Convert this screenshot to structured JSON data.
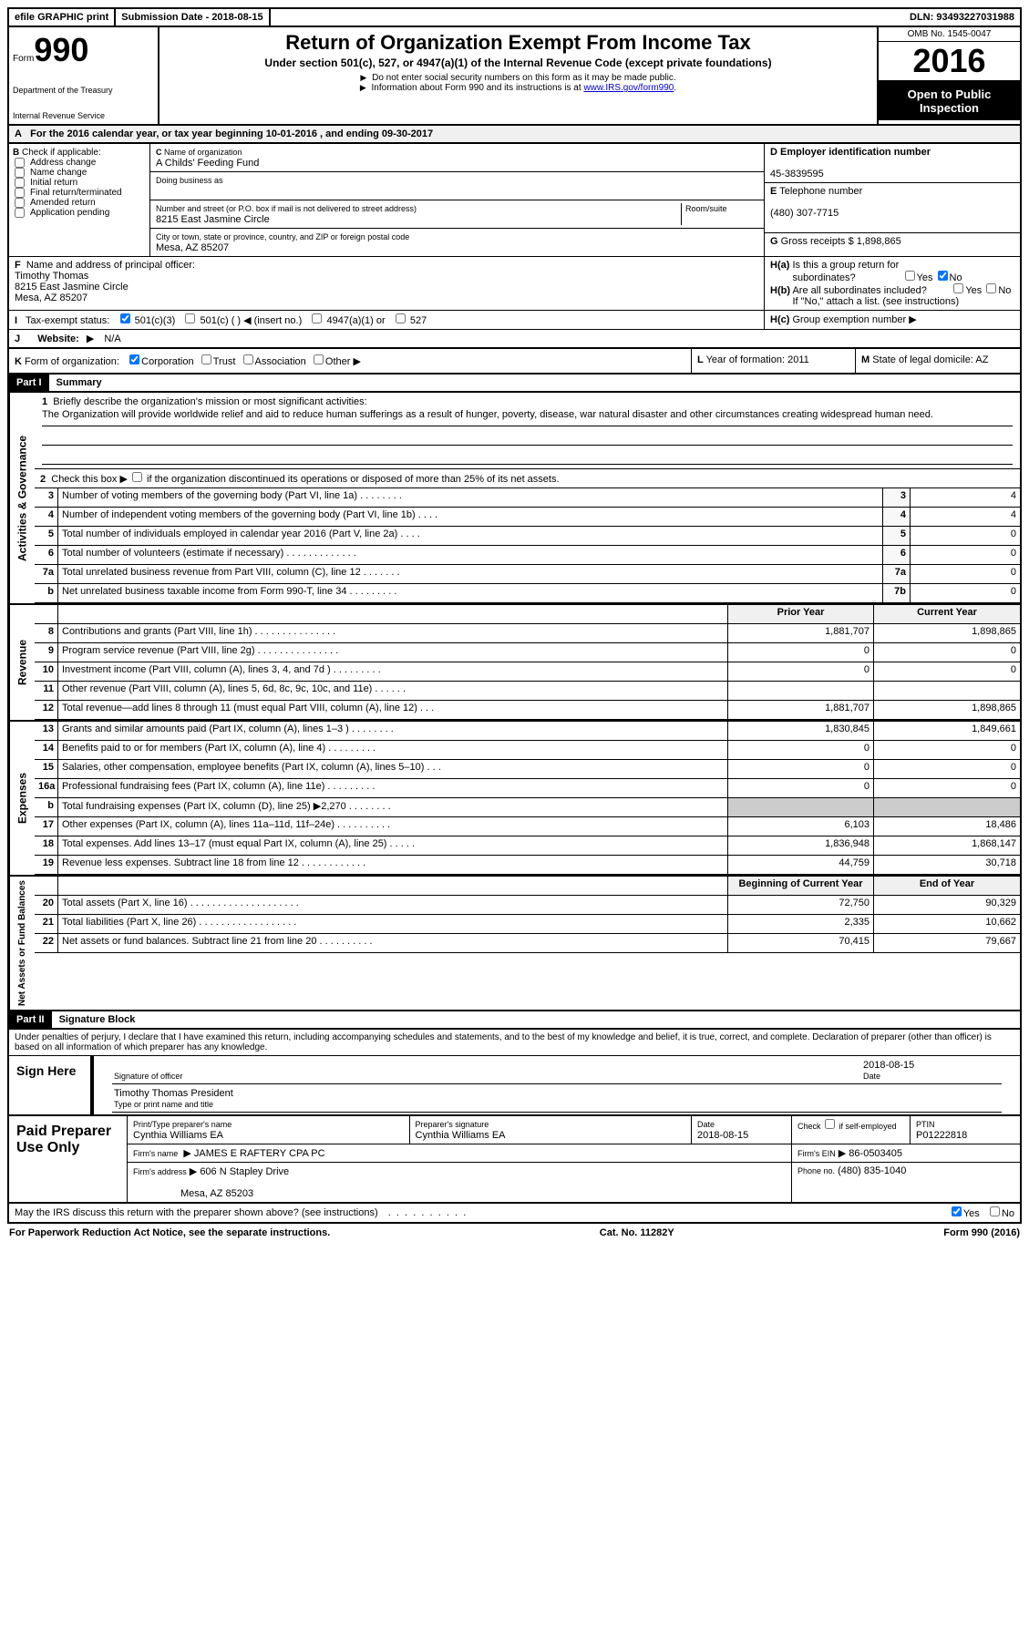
{
  "top": {
    "efile": "efile GRAPHIC print",
    "submission": "Submission Date - 2018-08-15",
    "dln": "DLN: 93493227031988"
  },
  "header": {
    "form_label": "Form",
    "form_num": "990",
    "dept1": "Department of the Treasury",
    "dept2": "Internal Revenue Service",
    "title": "Return of Organization Exempt From Income Tax",
    "subtitle": "Under section 501(c), 527, or 4947(a)(1) of the Internal Revenue Code (except private foundations)",
    "inst1": "Do not enter social security numbers on this form as it may be made public.",
    "inst2": "Information about Form 990 and its instructions is at",
    "inst_link": "www.IRS.gov/form990",
    "omb": "OMB No. 1545-0047",
    "year": "2016",
    "open1": "Open to Public",
    "open2": "Inspection"
  },
  "section_a": "For the 2016 calendar year, or tax year beginning 10-01-2016   , and ending 09-30-2017",
  "col_b": {
    "title": "Check if applicable:",
    "items": [
      "Address change",
      "Name change",
      "Initial return",
      "Final return/terminated",
      "Amended return",
      "Application pending"
    ]
  },
  "col_c": {
    "name_label": "Name of organization",
    "name": "A Childs' Feeding Fund",
    "dba_label": "Doing business as",
    "addr_label": "Number and street (or P.O. box if mail is not delivered to street address)",
    "room_label": "Room/suite",
    "addr": "8215 East Jasmine Circle",
    "city_label": "City or town, state or province, country, and ZIP or foreign postal code",
    "city": "Mesa, AZ  85207",
    "officer_label": "Name and address of principal officer:",
    "officer_name": "Timothy Thomas",
    "officer_addr": "8215 East Jasmine Circle",
    "officer_city": "Mesa, AZ  85207"
  },
  "col_d": {
    "ein_label": "Employer identification number",
    "ein": "45-3839595",
    "phone_label": "Telephone number",
    "phone": "(480) 307-7715",
    "gross_label": "Gross receipts $",
    "gross": "1,898,865"
  },
  "col_h": {
    "ha_label": "Is this a group return for",
    "ha_sub": "subordinates?",
    "hb_label": "Are all subordinates included?",
    "hb_note": "If \"No,\" attach a list. (see instructions)",
    "hc_label": "Group exemption number",
    "yes": "Yes",
    "no": "No"
  },
  "tax_status": {
    "label": "Tax-exempt status:",
    "opt1": "501(c)(3)",
    "opt2": "501(c) (  )",
    "opt2_note": "(insert no.)",
    "opt3": "4947(a)(1) or",
    "opt4": "527"
  },
  "website": {
    "label": "Website:",
    "value": "N/A"
  },
  "form_org": {
    "label": "Form of organization:",
    "opts": [
      "Corporation",
      "Trust",
      "Association",
      "Other"
    ]
  },
  "year_formed": {
    "label": "Year of formation:",
    "value": "2011"
  },
  "domicile": {
    "label": "State of legal domicile:",
    "value": "AZ"
  },
  "part1": {
    "header": "Part I",
    "title": "Summary",
    "line1_label": "Briefly describe the organization's mission or most significant activities:",
    "mission": "The Organization will provide worldwide relief and aid to reduce human sufferings as a result of hunger, poverty, disease, war natural disaster and other circumstances creating widespread human need.",
    "line2": "Check this box",
    "line2_cont": "if the organization discontinued its operations or disposed of more than 25% of its net assets.",
    "lines_gov": [
      {
        "n": "3",
        "t": "Number of voting members of the governing body (Part VI, line 1a)",
        "ln": "3",
        "v": "4"
      },
      {
        "n": "4",
        "t": "Number of independent voting members of the governing body (Part VI, line 1b)",
        "ln": "4",
        "v": "4"
      },
      {
        "n": "5",
        "t": "Total number of individuals employed in calendar year 2016 (Part V, line 2a)",
        "ln": "5",
        "v": "0"
      },
      {
        "n": "6",
        "t": "Total number of volunteers (estimate if necessary)",
        "ln": "6",
        "v": "0"
      },
      {
        "n": "7a",
        "t": "Total unrelated business revenue from Part VIII, column (C), line 12",
        "ln": "7a",
        "v": "0"
      },
      {
        "n": "b",
        "t": "Net unrelated business taxable income from Form 990-T, line 34",
        "ln": "7b",
        "v": "0"
      }
    ],
    "col_headers": {
      "prior": "Prior Year",
      "current": "Current Year"
    },
    "revenue": [
      {
        "n": "8",
        "t": "Contributions and grants (Part VIII, line 1h)",
        "p": "1,881,707",
        "c": "1,898,865"
      },
      {
        "n": "9",
        "t": "Program service revenue (Part VIII, line 2g)",
        "p": "0",
        "c": "0"
      },
      {
        "n": "10",
        "t": "Investment income (Part VIII, column (A), lines 3, 4, and 7d )",
        "p": "0",
        "c": "0"
      },
      {
        "n": "11",
        "t": "Other revenue (Part VIII, column (A), lines 5, 6d, 8c, 9c, 10c, and 11e)",
        "p": "",
        "c": ""
      },
      {
        "n": "12",
        "t": "Total revenue—add lines 8 through 11 (must equal Part VIII, column (A), line 12)",
        "p": "1,881,707",
        "c": "1,898,865"
      }
    ],
    "expenses": [
      {
        "n": "13",
        "t": "Grants and similar amounts paid (Part IX, column (A), lines 1–3 )",
        "p": "1,830,845",
        "c": "1,849,661"
      },
      {
        "n": "14",
        "t": "Benefits paid to or for members (Part IX, column (A), line 4)",
        "p": "0",
        "c": "0"
      },
      {
        "n": "15",
        "t": "Salaries, other compensation, employee benefits (Part IX, column (A), lines 5–10)",
        "p": "0",
        "c": "0"
      },
      {
        "n": "16a",
        "t": "Professional fundraising fees (Part IX, column (A), line 11e)",
        "p": "0",
        "c": "0"
      },
      {
        "n": "b",
        "t": "Total fundraising expenses (Part IX, column (D), line 25) ▶2,270",
        "p": "",
        "c": "",
        "shaded": true
      },
      {
        "n": "17",
        "t": "Other expenses (Part IX, column (A), lines 11a–11d, 11f–24e)",
        "p": "6,103",
        "c": "18,486"
      },
      {
        "n": "18",
        "t": "Total expenses. Add lines 13–17 (must equal Part IX, column (A), line 25)",
        "p": "1,836,948",
        "c": "1,868,147"
      },
      {
        "n": "19",
        "t": "Revenue less expenses. Subtract line 18 from line 12",
        "p": "44,759",
        "c": "30,718"
      }
    ],
    "net_headers": {
      "begin": "Beginning of Current Year",
      "end": "End of Year"
    },
    "net": [
      {
        "n": "20",
        "t": "Total assets (Part X, line 16)",
        "p": "72,750",
        "c": "90,329"
      },
      {
        "n": "21",
        "t": "Total liabilities (Part X, line 26)",
        "p": "2,335",
        "c": "10,662"
      },
      {
        "n": "22",
        "t": "Net assets or fund balances. Subtract line 21 from line 20",
        "p": "70,415",
        "c": "79,667"
      }
    ],
    "side_gov": "Activities & Governance",
    "side_rev": "Revenue",
    "side_exp": "Expenses",
    "side_net": "Net Assets or Fund Balances"
  },
  "part2": {
    "header": "Part II",
    "title": "Signature Block",
    "penalty": "Under penalties of perjury, I declare that I have examined this return, including accompanying schedules and statements, and to the best of my knowledge and belief, it is true, correct, and complete. Declaration of preparer (other than officer) is based on all information of which preparer has any knowledge.",
    "sign_here": "Sign Here",
    "sig_officer": "Signature of officer",
    "date_label": "Date",
    "sig_date": "2018-08-15",
    "officer": "Timothy Thomas  President",
    "type_name": "Type or print name and title",
    "paid_prep": "Paid Preparer Use Only",
    "prep_name_label": "Print/Type preparer's name",
    "prep_name": "Cynthia Williams EA",
    "prep_sig_label": "Preparer's signature",
    "prep_sig": "Cynthia Williams EA",
    "prep_date_label": "Date",
    "prep_date": "2018-08-15",
    "check_self": "Check",
    "self_emp": "if self-employed",
    "ptin_label": "PTIN",
    "ptin": "P01222818",
    "firm_name_label": "Firm's name",
    "firm_name": "JAMES E RAFTERY CPA PC",
    "firm_ein_label": "Firm's EIN",
    "firm_ein": "86-0503405",
    "firm_addr_label": "Firm's address",
    "firm_addr": "606 N Stapley Drive",
    "firm_city": "Mesa, AZ  85203",
    "firm_phone_label": "Phone no.",
    "firm_phone": "(480) 835-1040",
    "irs_discuss": "May the IRS discuss this return with the preparer shown above? (see instructions)"
  },
  "footer": {
    "paperwork": "For Paperwork Reduction Act Notice, see the separate instructions.",
    "cat": "Cat. No. 11282Y",
    "form": "Form 990 (2016)"
  },
  "letters": {
    "A": "A",
    "B": "B",
    "C": "C",
    "D": "D",
    "E": "E",
    "F": "F",
    "G": "G",
    "H_a": "H(a)",
    "H_b": "H(b)",
    "H_c": "H(c)",
    "I": "I",
    "J": "J",
    "K": "K",
    "L": "L",
    "M": "M"
  }
}
